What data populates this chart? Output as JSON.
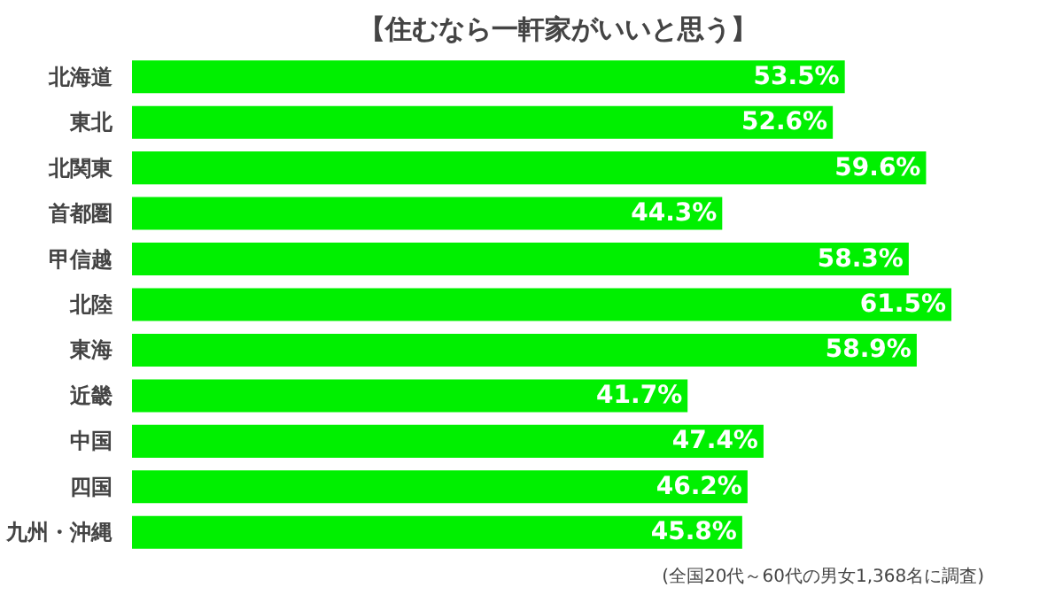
{
  "chart_data": {
    "type": "bar",
    "orientation": "horizontal",
    "title": "【住むなら一軒家がいいと思う】",
    "categories": [
      "北海道",
      "東北",
      "北関東",
      "首都圏",
      "甲信越",
      "北陸",
      "東海",
      "近畿",
      "中国",
      "四国",
      "九州・沖縄"
    ],
    "values": [
      53.5,
      52.6,
      59.6,
      44.3,
      58.3,
      61.5,
      58.9,
      41.7,
      47.4,
      46.2,
      45.8
    ],
    "value_labels": [
      "53.5%",
      "52.6%",
      "59.6%",
      "44.3%",
      "58.3%",
      "61.5%",
      "58.9%",
      "41.7%",
      "47.4%",
      "46.2%",
      "45.8%"
    ],
    "color": "#00f000",
    "grid": false,
    "annotations": [
      "(全国20代～60代の男女1,368名に調査)"
    ]
  }
}
